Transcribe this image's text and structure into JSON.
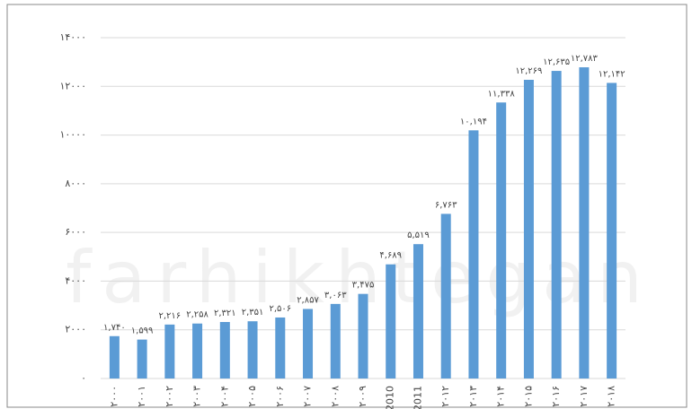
{
  "chart_data": {
    "type": "bar",
    "watermark": "farhikhtegan",
    "categories": [
      "۲۰۰۰",
      "۲۰۰۱",
      "۲۰۰۲",
      "۲۰۰۳",
      "۲۰۰۴",
      "۲۰۰۵",
      "۲۰۰۶",
      "۲۰۰۷",
      "۲۰۰۸",
      "۲۰۰۹",
      "2010",
      "2011",
      "۲۰۱۲",
      "۲۰۱۳",
      "۲۰۱۴",
      "۲۰۱۵",
      "۲۰۱۶",
      "۲۰۱۷",
      "۲۰۱۸"
    ],
    "values": [
      1740,
      1599,
      2216,
      2258,
      2321,
      2351,
      2506,
      2857,
      3063,
      3475,
      4689,
      5519,
      6763,
      10194,
      11338,
      12269,
      12635,
      12783,
      12142
    ],
    "value_labels": [
      "۱,۷۴۰",
      "۱,۵۹۹",
      "۲,۲۱۶",
      "۲,۲۵۸",
      "۲,۳۲۱",
      "۲,۳۵۱",
      "۲,۵۰۶",
      "۲,۸۵۷",
      "۳,۰۶۳",
      "۳,۴۷۵",
      "۴,۶۸۹",
      "۵,۵۱۹",
      "۶,۷۶۳",
      "۱۰,۱۹۴",
      "۱۱,۳۳۸",
      "۱۲,۲۶۹",
      "۱۲,۶۳۵",
      "۱۲,۷۸۳",
      "۱۲,۱۴۲"
    ],
    "color": "#5b9bd5",
    "ylim": [
      0,
      14000
    ],
    "yticks": [
      {
        "value": 0,
        "label": "۰"
      },
      {
        "value": 2000,
        "label": "۲۰۰۰"
      },
      {
        "value": 4000,
        "label": "۴۰۰۰"
      },
      {
        "value": 6000,
        "label": "۶۰۰۰"
      },
      {
        "value": 8000,
        "label": "۸۰۰۰"
      },
      {
        "value": 10000,
        "label": "۱۰۰۰۰"
      },
      {
        "value": 12000,
        "label": "۱۲۰۰۰"
      },
      {
        "value": 14000,
        "label": "۱۴۰۰۰"
      }
    ],
    "grid": true
  }
}
